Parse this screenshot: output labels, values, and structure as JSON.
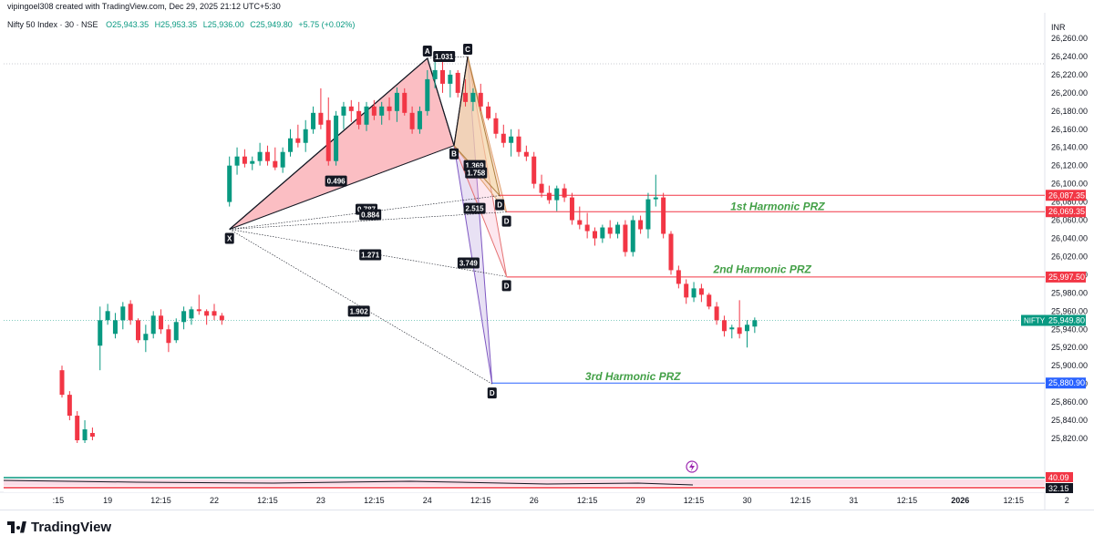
{
  "header": {
    "credit": "vipingoel308 created with TradingView.com, Dec 29, 2025 21:12 UTC+5:30",
    "symbol": "Nifty 50 Index · 30 · NSE",
    "open": "O25,943.35",
    "high": "H25,953.35",
    "low": "L25,936.00",
    "close": "C25,949.80",
    "change": "+5.75 (+0.02%)",
    "currency": "INR"
  },
  "brand": {
    "name": "TradingView",
    "logo_icon": "tradingview-logo-icon"
  },
  "colors": {
    "up": "#089981",
    "down": "#f23645",
    "red_line": "#f23645",
    "blue_line": "#2962ff",
    "prz_text": "#43a047",
    "dark_label": "#131722"
  },
  "chart_data": {
    "type": "candlestick",
    "symbol": "NIFTY",
    "interval": "30",
    "ylim": [
      25800,
      26270
    ],
    "y_ticks": [
      26260,
      26240,
      26220,
      26200,
      26180,
      26160,
      26140,
      26120,
      26100,
      26080,
      26060,
      26040,
      26020,
      26000,
      25980,
      25960,
      25940,
      25920,
      25900,
      25880,
      25860,
      25840,
      25820
    ],
    "y_tick_labels": [
      "26,260.00",
      "26,240.00",
      "26,220.00",
      "26,200.00",
      "26,180.00",
      "26,160.00",
      "26,140.00",
      "26,120.00",
      "26,100.00",
      "26,080.00",
      "26,060.00",
      "26,040.00",
      "26,020.00",
      "26,000.00",
      "25,980.00",
      "25,960.00",
      "25,940.00",
      "25,920.00",
      "25,900.00",
      "25,880.00",
      "25,860.00",
      "25,840.00",
      "25,820.00"
    ],
    "x_ticks": [
      ":15",
      "19",
      "12:15",
      "22",
      "12:15",
      "23",
      "12:15",
      "24",
      "12:15",
      "26",
      "12:15",
      "29",
      "12:15",
      "30",
      "12:15",
      "31",
      "12:15",
      "2026",
      "12:15",
      "2"
    ],
    "x_tick_bars": [
      -0.5,
      6,
      13,
      20,
      27,
      34,
      41,
      48,
      55,
      62,
      69,
      76,
      83,
      90,
      97,
      104,
      111,
      118,
      125,
      132
    ],
    "candles": [
      [
        25895,
        25900,
        25865,
        25868
      ],
      [
        25868,
        25872,
        25840,
        25845
      ],
      [
        25845,
        25850,
        25815,
        25818
      ],
      [
        25818,
        25840,
        25815,
        25830
      ],
      [
        25826,
        25832,
        25818,
        25822
      ],
      [
        25922,
        25965,
        25895,
        25950
      ],
      [
        25950,
        25968,
        25945,
        25960
      ],
      [
        25935,
        25958,
        25930,
        25950
      ],
      [
        25950,
        25970,
        25940,
        25965
      ],
      [
        25968,
        25972,
        25945,
        25950
      ],
      [
        25950,
        25952,
        25925,
        25928
      ],
      [
        25928,
        25945,
        25915,
        25935
      ],
      [
        25935,
        25960,
        25930,
        25955
      ],
      [
        25955,
        25962,
        25935,
        25940
      ],
      [
        25940,
        25945,
        25915,
        25925
      ],
      [
        25928,
        25952,
        25925,
        25948
      ],
      [
        25948,
        25965,
        25940,
        25960
      ],
      [
        25952,
        25965,
        25945,
        25962
      ],
      [
        25962,
        25978,
        25956,
        25960
      ],
      [
        25960,
        25962,
        25945,
        25955
      ],
      [
        25960,
        25968,
        25950,
        25955
      ],
      [
        25955,
        25958,
        25945,
        25950
      ],
      [
        26080,
        26130,
        26075,
        26120
      ],
      [
        26120,
        26140,
        26110,
        26130
      ],
      [
        26130,
        26138,
        26118,
        26122
      ],
      [
        26122,
        26130,
        26115,
        26125
      ],
      [
        26125,
        26145,
        26120,
        26135
      ],
      [
        26135,
        26142,
        26120,
        26125
      ],
      [
        26125,
        26140,
        26115,
        26118
      ],
      [
        26118,
        26140,
        26112,
        26135
      ],
      [
        26135,
        26160,
        26130,
        26150
      ],
      [
        26150,
        26165,
        26140,
        26145
      ],
      [
        26145,
        26170,
        26135,
        26160
      ],
      [
        26160,
        26185,
        26155,
        26178
      ],
      [
        26178,
        26205,
        26160,
        26165
      ],
      [
        26170,
        26195,
        26120,
        26125
      ],
      [
        26125,
        26180,
        26120,
        26175
      ],
      [
        26175,
        26190,
        26160,
        26185
      ],
      [
        26185,
        26192,
        26168,
        26180
      ],
      [
        26180,
        26190,
        26160,
        26165
      ],
      [
        26165,
        26190,
        26158,
        26185
      ],
      [
        26185,
        26192,
        26170,
        26175
      ],
      [
        26175,
        26190,
        26165,
        26185
      ],
      [
        26185,
        26195,
        26170,
        26180
      ],
      [
        26180,
        26206,
        26168,
        26200
      ],
      [
        26200,
        26205,
        26175,
        26178
      ],
      [
        26178,
        26185,
        26155,
        26160
      ],
      [
        26160,
        26185,
        26155,
        26180
      ],
      [
        26180,
        26225,
        26175,
        26215
      ],
      [
        26215,
        26240,
        26205,
        26225
      ],
      [
        26225,
        26235,
        26200,
        26210
      ],
      [
        26210,
        26225,
        26195,
        26220
      ],
      [
        26222,
        26225,
        26195,
        26200
      ],
      [
        26200,
        26215,
        26185,
        26190
      ],
      [
        26190,
        26205,
        26180,
        26200
      ],
      [
        26200,
        26210,
        26180,
        26185
      ],
      [
        26185,
        26190,
        26170,
        26172
      ],
      [
        26172,
        26178,
        26150,
        26155
      ],
      [
        26155,
        26165,
        26140,
        26145
      ],
      [
        26145,
        26160,
        26130,
        26152
      ],
      [
        26152,
        26160,
        26130,
        26135
      ],
      [
        26135,
        26142,
        26125,
        26130
      ],
      [
        26130,
        26135,
        26095,
        26100
      ],
      [
        26100,
        26110,
        26085,
        26090
      ],
      [
        26090,
        26098,
        26078,
        26082
      ],
      [
        26082,
        26098,
        26070,
        26095
      ],
      [
        26095,
        26100,
        26080,
        26085
      ],
      [
        26085,
        26090,
        26055,
        26060
      ],
      [
        26060,
        26075,
        26050,
        26055
      ],
      [
        26055,
        26068,
        26040,
        26048
      ],
      [
        26048,
        26052,
        26032,
        26040
      ],
      [
        26040,
        26055,
        26035,
        26052
      ],
      [
        26052,
        26060,
        26040,
        26045
      ],
      [
        26045,
        26058,
        26040,
        26055
      ],
      [
        26055,
        26060,
        26020,
        26025
      ],
      [
        26025,
        26065,
        26020,
        26060
      ],
      [
        26060,
        26065,
        26045,
        26050
      ],
      [
        26050,
        26090,
        26040,
        26083
      ],
      [
        26083,
        26110,
        26075,
        26085
      ],
      [
        26085,
        26090,
        26040,
        26045
      ],
      [
        26045,
        26048,
        26000,
        26005
      ],
      [
        26005,
        26010,
        25985,
        25990
      ],
      [
        25990,
        25995,
        25968,
        25975
      ],
      [
        25975,
        25992,
        25970,
        25985
      ],
      [
        25985,
        25990,
        25970,
        25978
      ],
      [
        25978,
        25980,
        25962,
        25965
      ],
      [
        25965,
        25970,
        25945,
        25950
      ],
      [
        25950,
        25955,
        25932,
        25938
      ],
      [
        25940,
        25945,
        25930,
        25942
      ],
      [
        25942,
        25972,
        25930,
        25935
      ],
      [
        25938,
        25950,
        25920,
        25945
      ],
      [
        25943,
        25953,
        25936,
        25950
      ]
    ],
    "harmonic_points": [
      {
        "label": "X",
        "bar": 22,
        "price": 26050
      },
      {
        "label": "A",
        "bar": 48,
        "price": 26238
      },
      {
        "label": "B",
        "bar": 51.5,
        "price": 26142
      },
      {
        "label": "C",
        "bar": 53.3,
        "price": 26240
      },
      {
        "label": "D",
        "bar": 57.5,
        "price": 26087
      },
      {
        "label": "D",
        "bar": 58.4,
        "price": 26069
      },
      {
        "label": "D",
        "bar": 58.4,
        "price": 25998
      },
      {
        "label": "D",
        "bar": 56.5,
        "price": 25880
      }
    ],
    "ratios": [
      {
        "text": "1.031",
        "bar": 50.2,
        "price": 26240
      },
      {
        "text": "0.496",
        "bar": 36,
        "price": 26103
      },
      {
        "text": "0.787",
        "bar": 40,
        "price": 26072
      },
      {
        "text": "0.884",
        "bar": 40.5,
        "price": 26066
      },
      {
        "text": "1.271",
        "bar": 40.5,
        "price": 26022
      },
      {
        "text": "1.902",
        "bar": 39,
        "price": 25960
      },
      {
        "text": "1.369",
        "bar": 54.2,
        "price": 26120
      },
      {
        "text": "1.758",
        "bar": 54.4,
        "price": 26112
      },
      {
        "text": "2.515",
        "bar": 54.2,
        "price": 26073
      },
      {
        "text": "3.749",
        "bar": 53.4,
        "price": 26013
      }
    ],
    "levels": [
      {
        "price": 26087.35,
        "label": "26,087.35",
        "color": "#f23645"
      },
      {
        "price": 26069.35,
        "label": "26,069.35",
        "color": "#f23645"
      },
      {
        "price": 25997.5,
        "label": "25,997.50",
        "color": "#f23645"
      },
      {
        "price": 25880.9,
        "label": "25,880.90",
        "color": "#2962ff"
      }
    ],
    "prz_labels": [
      {
        "text": "1st Harmonic PRZ",
        "price": 26075,
        "bar": 94
      },
      {
        "text": "2nd Harmonic PRZ",
        "price": 26006,
        "bar": 92
      },
      {
        "text": "3rd Harmonic PRZ",
        "price": 25888,
        "bar": 75
      }
    ],
    "last_price": {
      "symbol": "NIFTY",
      "label": "25,949.80",
      "price": 25949.8
    },
    "indicator": {
      "upper": "40.09",
      "lower": "32.15"
    }
  }
}
